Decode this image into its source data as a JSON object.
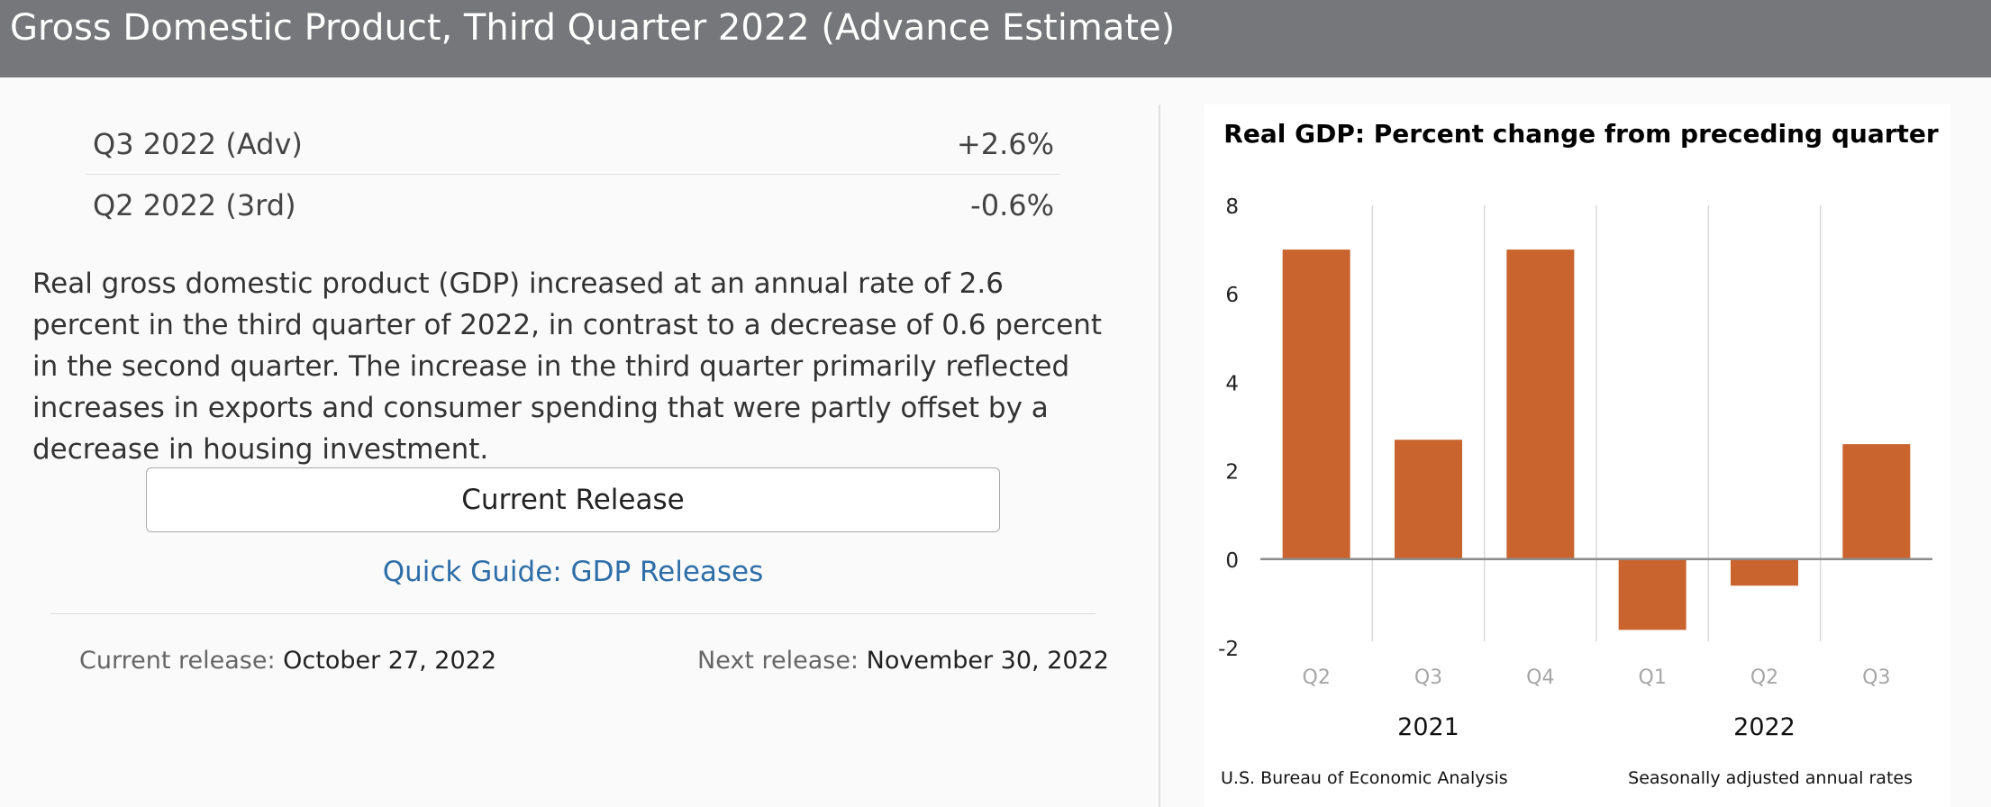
{
  "header": {
    "title": "Gross Domestic Product, Third Quarter 2022 (Advance Estimate)"
  },
  "estimates": [
    {
      "label": "Q3 2022 (Adv)",
      "value": "+2.6%"
    },
    {
      "label": "Q2 2022 (3rd)",
      "value": "-0.6%"
    }
  ],
  "summary": "Real gross domestic product (GDP) increased at an annual rate of 2.6 percent in the third quarter of 2022, in contrast to a decrease of 0.6 percent in the second quarter. The increase in the third quarter primarily reflected increases in exports and consumer spending that were partly offset by a decrease in housing investment.",
  "actions": {
    "current_release_button": "Current Release",
    "quick_guide_link": "Quick Guide: GDP Releases"
  },
  "release_dates": {
    "current_label": "Current release:",
    "current_value": "October 27, 2022",
    "next_label": "Next release:",
    "next_value": "November 30, 2022"
  },
  "chart_data": {
    "type": "bar",
    "title": "Real GDP:  Percent change from preceding quarter",
    "categories": [
      "Q2",
      "Q3",
      "Q4",
      "Q1",
      "Q2",
      "Q3"
    ],
    "groups": [
      {
        "label": "2021",
        "categories": [
          "Q2",
          "Q3",
          "Q4"
        ]
      },
      {
        "label": "2022",
        "categories": [
          "Q1",
          "Q2",
          "Q3"
        ]
      }
    ],
    "values": [
      7.0,
      2.7,
      7.0,
      -1.6,
      -0.6,
      2.6
    ],
    "ylim": [
      -2,
      8
    ],
    "yticks": [
      -2,
      0,
      2,
      4,
      6,
      8
    ],
    "bar_color": "#c9642e",
    "source_note": "U.S. Bureau of Economic Analysis",
    "rate_note": "Seasonally adjusted annual rates"
  }
}
